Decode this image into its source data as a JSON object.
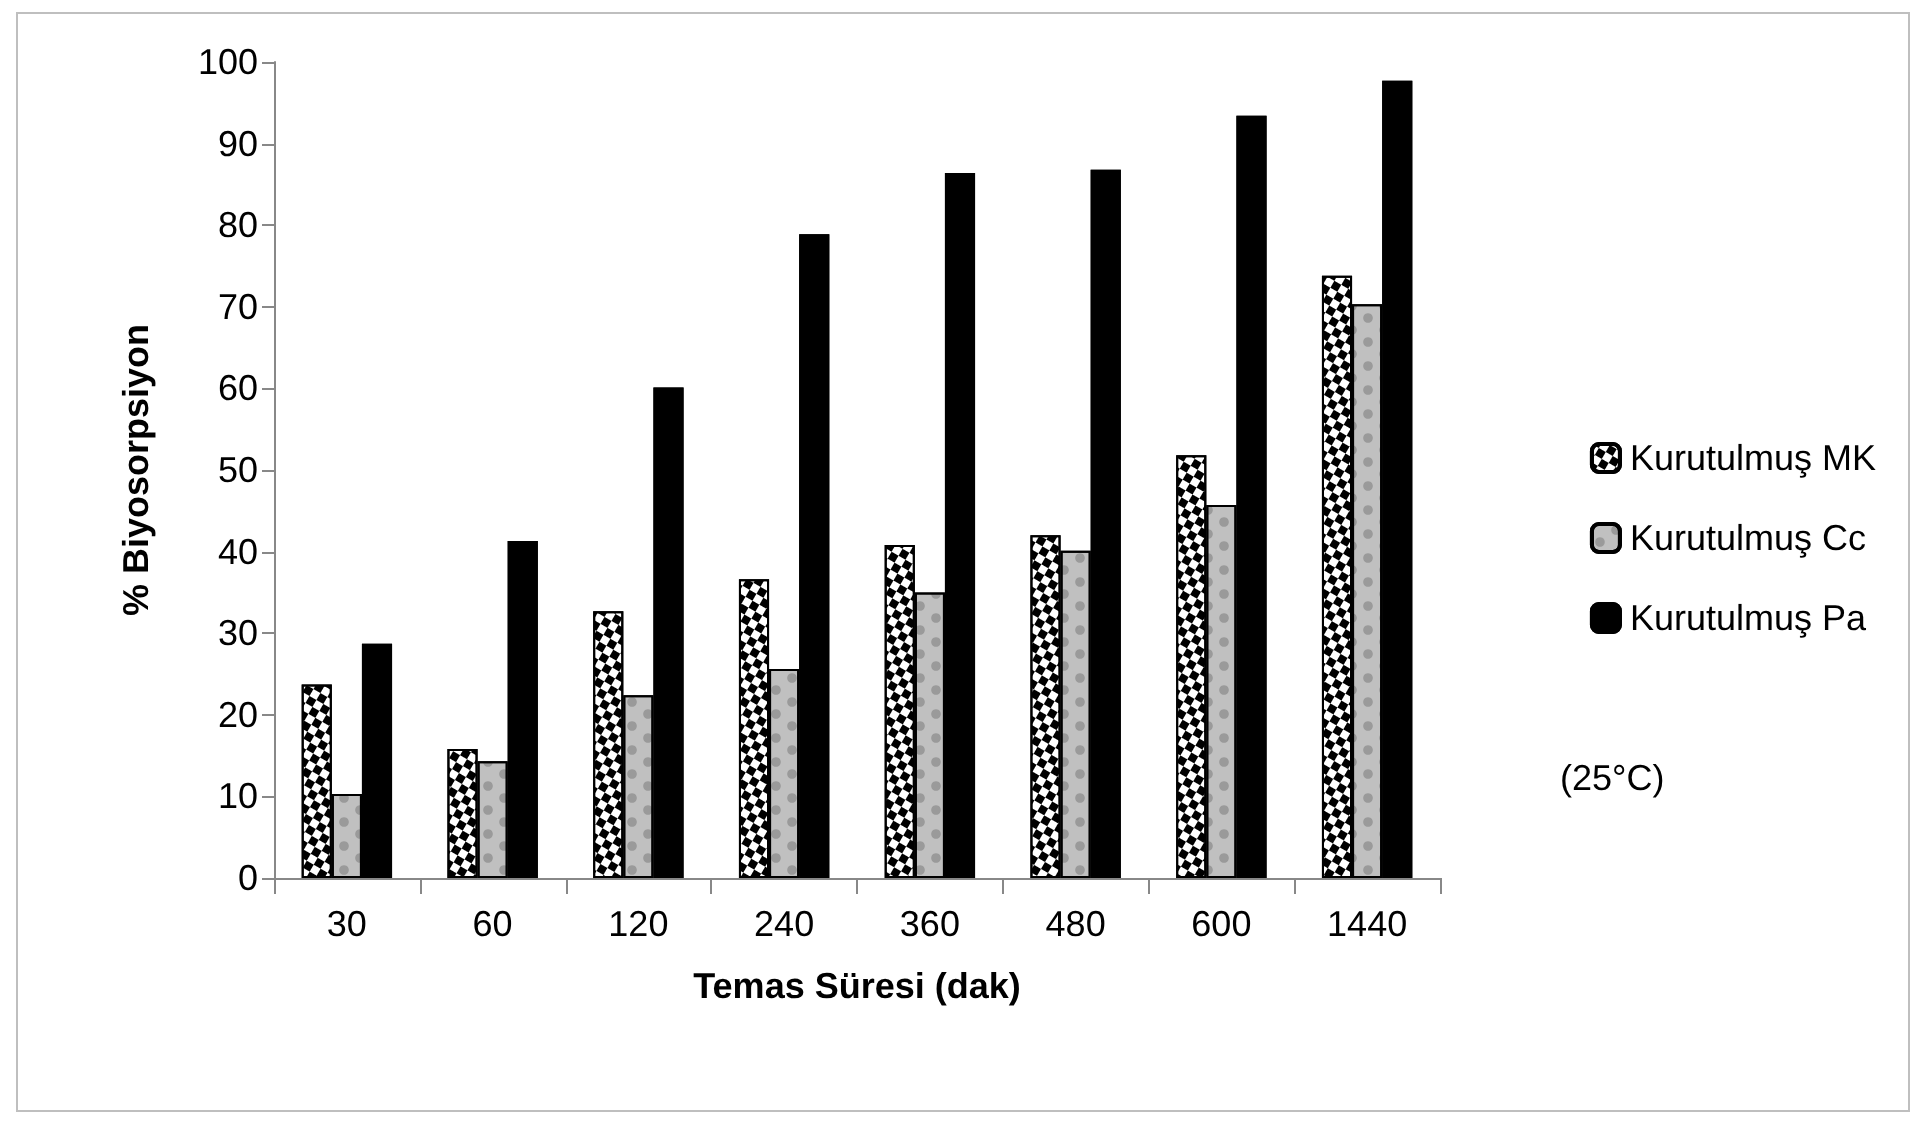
{
  "chart_data": {
    "type": "bar",
    "xlabel": "Temas Süresi (dak)",
    "ylabel": "% Biyosorpsiyon",
    "categories": [
      "30",
      "60",
      "120",
      "240",
      "360",
      "480",
      "600",
      "1440"
    ],
    "series": [
      {
        "name": "Kurutulmuş MK",
        "color": "#ffffff",
        "values": [
          23.7,
          15.8,
          32.7,
          36.6,
          40.8,
          42.0,
          51.8,
          73.8
        ]
      },
      {
        "name": "Kurutulmuş Cc",
        "color": "#c0c0c0",
        "values": [
          10.3,
          14.3,
          22.4,
          25.6,
          35.0,
          40.1,
          45.7,
          70.3
        ]
      },
      {
        "name": "Kurutulmuş Pa",
        "color": "#000000",
        "values": [
          28.7,
          41.3,
          60.1,
          78.9,
          86.4,
          86.8,
          93.4,
          97.7
        ]
      }
    ],
    "ylim": [
      0,
      100
    ],
    "yticks": [
      0,
      10,
      20,
      30,
      40,
      50,
      60,
      70,
      80,
      90,
      100
    ],
    "grid": false,
    "legend": "right",
    "annotations": [
      "(25°C)"
    ]
  }
}
